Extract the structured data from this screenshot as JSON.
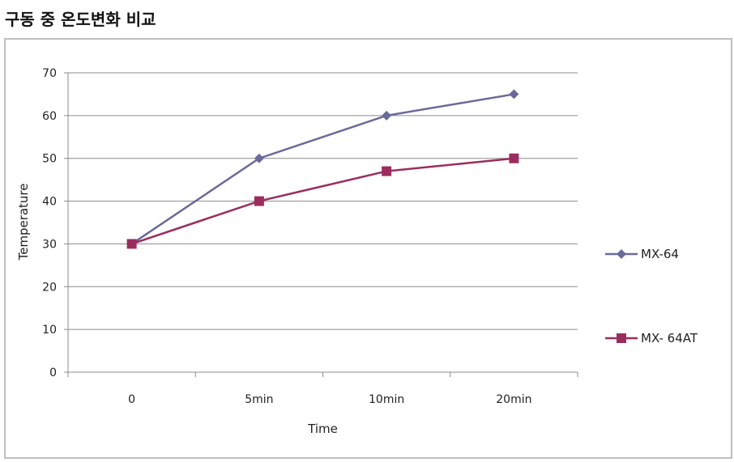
{
  "page": {
    "title": "구동 중 온도변화 비교"
  },
  "chart_data": {
    "type": "line",
    "categories": [
      "0",
      "5min",
      "10min",
      "20min"
    ],
    "series": [
      {
        "name": "MX-64",
        "values": [
          30,
          50,
          60,
          65
        ],
        "color": "#6a6a9a",
        "marker": "diamond"
      },
      {
        "name": "MX- 64AT",
        "values": [
          30,
          40,
          47,
          50
        ],
        "color": "#9b2d5e",
        "marker": "square"
      }
    ],
    "title": "",
    "xlabel": "Time",
    "ylabel": "Temperature",
    "ylim": [
      0,
      70
    ],
    "yticks": [
      0,
      10,
      20,
      30,
      40,
      50,
      60,
      70
    ],
    "grid": true,
    "legend": "right"
  }
}
